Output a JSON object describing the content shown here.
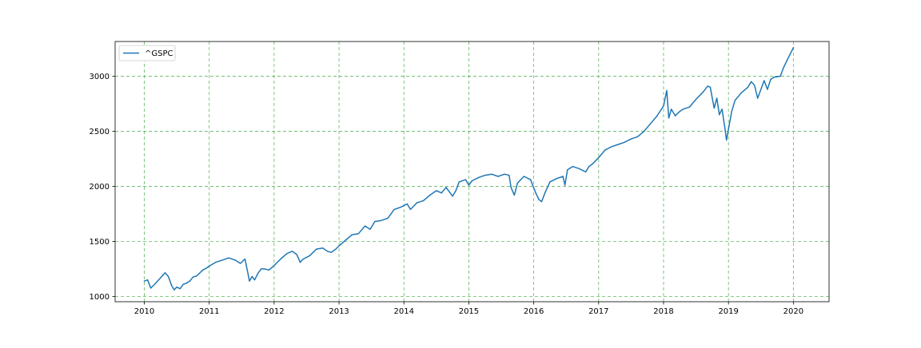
{
  "chart_data": {
    "type": "line",
    "title": "",
    "xlabel": "",
    "ylabel": "",
    "xlim": [
      2009.55,
      2020.55
    ],
    "ylim": [
      952,
      3315
    ],
    "x_ticks": [
      2010,
      2011,
      2012,
      2013,
      2014,
      2015,
      2016,
      2017,
      2018,
      2019,
      2020
    ],
    "x_tick_labels": [
      "2010",
      "2011",
      "2012",
      "2013",
      "2014",
      "2015",
      "2016",
      "2017",
      "2018",
      "2019",
      "2020"
    ],
    "y_ticks": [
      1000,
      1500,
      2000,
      2500,
      3000
    ],
    "y_tick_labels": [
      "1000",
      "1500",
      "2000",
      "2500",
      "3000"
    ],
    "grid": true,
    "grid_color": "#2ca02c",
    "grid_style": "dashed",
    "legend": {
      "position": "top-left",
      "entries": [
        "^GSPC"
      ]
    },
    "series": [
      {
        "name": "^GSPC",
        "color": "#1f77b4",
        "x": [
          2010.0,
          2010.05,
          2010.1,
          2010.15,
          2010.22,
          2010.28,
          2010.32,
          2010.37,
          2010.42,
          2010.46,
          2010.5,
          2010.55,
          2010.6,
          2010.65,
          2010.7,
          2010.75,
          2010.8,
          2010.85,
          2010.9,
          2010.95,
          2011.0,
          2011.1,
          2011.2,
          2011.3,
          2011.4,
          2011.48,
          2011.55,
          2011.6,
          2011.62,
          2011.66,
          2011.7,
          2011.75,
          2011.8,
          2011.85,
          2011.92,
          2012.0,
          2012.1,
          2012.2,
          2012.28,
          2012.35,
          2012.4,
          2012.45,
          2012.55,
          2012.65,
          2012.75,
          2012.82,
          2012.88,
          2012.95,
          2013.0,
          2013.1,
          2013.2,
          2013.3,
          2013.4,
          2013.48,
          2013.55,
          2013.65,
          2013.75,
          2013.85,
          2013.95,
          2014.05,
          2014.1,
          2014.2,
          2014.3,
          2014.4,
          2014.5,
          2014.58,
          2014.65,
          2014.75,
          2014.8,
          2014.85,
          2014.95,
          2015.0,
          2015.05,
          2015.15,
          2015.25,
          2015.35,
          2015.45,
          2015.55,
          2015.62,
          2015.65,
          2015.7,
          2015.75,
          2015.85,
          2015.95,
          2016.03,
          2016.08,
          2016.12,
          2016.18,
          2016.25,
          2016.35,
          2016.45,
          2016.48,
          2016.52,
          2016.6,
          2016.7,
          2016.8,
          2016.85,
          2016.9,
          2017.0,
          2017.1,
          2017.2,
          2017.3,
          2017.4,
          2017.5,
          2017.6,
          2017.7,
          2017.8,
          2017.9,
          2018.0,
          2018.05,
          2018.08,
          2018.12,
          2018.18,
          2018.25,
          2018.3,
          2018.4,
          2018.5,
          2018.6,
          2018.68,
          2018.72,
          2018.78,
          2018.82,
          2018.86,
          2018.9,
          2018.94,
          2018.97,
          2019.0,
          2019.05,
          2019.1,
          2019.2,
          2019.3,
          2019.35,
          2019.4,
          2019.45,
          2019.55,
          2019.6,
          2019.65,
          2019.7,
          2019.8,
          2019.85,
          2019.9,
          2019.95,
          2020.0
        ],
        "values": [
          1140,
          1150,
          1075,
          1105,
          1150,
          1190,
          1215,
          1180,
          1100,
          1060,
          1085,
          1070,
          1110,
          1120,
          1140,
          1175,
          1185,
          1210,
          1240,
          1255,
          1275,
          1310,
          1330,
          1350,
          1330,
          1300,
          1340,
          1200,
          1140,
          1180,
          1150,
          1210,
          1250,
          1250,
          1240,
          1280,
          1340,
          1390,
          1410,
          1380,
          1310,
          1340,
          1370,
          1430,
          1440,
          1410,
          1400,
          1430,
          1460,
          1510,
          1560,
          1570,
          1640,
          1610,
          1680,
          1690,
          1710,
          1790,
          1810,
          1840,
          1790,
          1850,
          1870,
          1920,
          1960,
          1940,
          1990,
          1910,
          1960,
          2040,
          2060,
          2010,
          2050,
          2080,
          2100,
          2110,
          2090,
          2110,
          2100,
          1990,
          1920,
          2030,
          2090,
          2060,
          1940,
          1880,
          1860,
          1950,
          2040,
          2070,
          2090,
          2010,
          2150,
          2180,
          2160,
          2130,
          2180,
          2200,
          2260,
          2330,
          2360,
          2380,
          2400,
          2430,
          2450,
          2500,
          2570,
          2640,
          2730,
          2870,
          2620,
          2700,
          2640,
          2680,
          2700,
          2720,
          2790,
          2850,
          2910,
          2900,
          2710,
          2800,
          2650,
          2700,
          2550,
          2420,
          2520,
          2680,
          2780,
          2850,
          2900,
          2950,
          2920,
          2800,
          2960,
          2880,
          2970,
          2990,
          3000,
          3080,
          3140,
          3200,
          3260
        ]
      }
    ]
  }
}
